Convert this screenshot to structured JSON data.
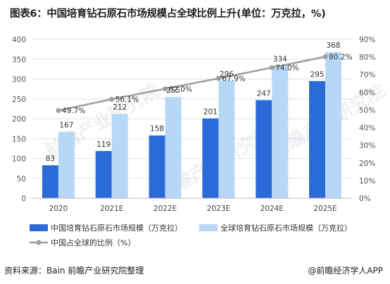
{
  "header": {
    "title": "图表6：中国培育钻石原石市场规模占全球比例上升(单位：万克拉，%)"
  },
  "footer": {
    "source": "资料来源：Bain 前瞻产业研究院整理",
    "brand": "@前瞻经济学人APP"
  },
  "colors": {
    "china_bar": "#2b6bd8",
    "global_bar": "#b6d8f6",
    "ratio_line": "#9e9e9e",
    "grid": "#e3e3e3"
  },
  "watermark": "前瞻产业研究院",
  "chart_data": {
    "type": "bar",
    "title": "图表6：中国培育钻石原石市场规模占全球比例上升(单位：万克拉，%)",
    "categories": [
      "2020",
      "2021E",
      "2022E",
      "2023E",
      "2024E",
      "2025E"
    ],
    "series": [
      {
        "name": "中国培育钻石原石市场规模（万克拉）",
        "type": "bar",
        "axis": "left",
        "values": [
          83,
          119,
          158,
          201,
          247,
          295
        ]
      },
      {
        "name": "全球培育钻石原石市场规模（万克拉）",
        "type": "bar",
        "axis": "left",
        "values": [
          167,
          212,
          255,
          296,
          334,
          368
        ]
      },
      {
        "name": "中国占全球的比例（%）",
        "type": "line",
        "axis": "right",
        "values": [
          49.7,
          56.1,
          62.0,
          67.9,
          74.0,
          80.2
        ]
      }
    ],
    "ylim": [
      0,
      400
    ],
    "y_ticks": [
      "0",
      "50",
      "100",
      "150",
      "200",
      "250",
      "300",
      "350",
      "400"
    ],
    "y2lim": [
      0,
      90
    ],
    "y2_ticks": [
      "0%",
      "10%",
      "20%",
      "30%",
      "40%",
      "50%",
      "60%",
      "70%",
      "80%",
      "90%"
    ],
    "data_labels": {
      "china": [
        "83",
        "119",
        "158",
        "201",
        "247",
        "295"
      ],
      "global": [
        "167",
        "212",
        "255",
        "296",
        "334",
        "368"
      ],
      "ratio": [
        "49.7%",
        "56.1%",
        "62.0%",
        "67.9%",
        "74.0%",
        "80.2%"
      ]
    },
    "grid": true,
    "legend_position": "bottom"
  }
}
